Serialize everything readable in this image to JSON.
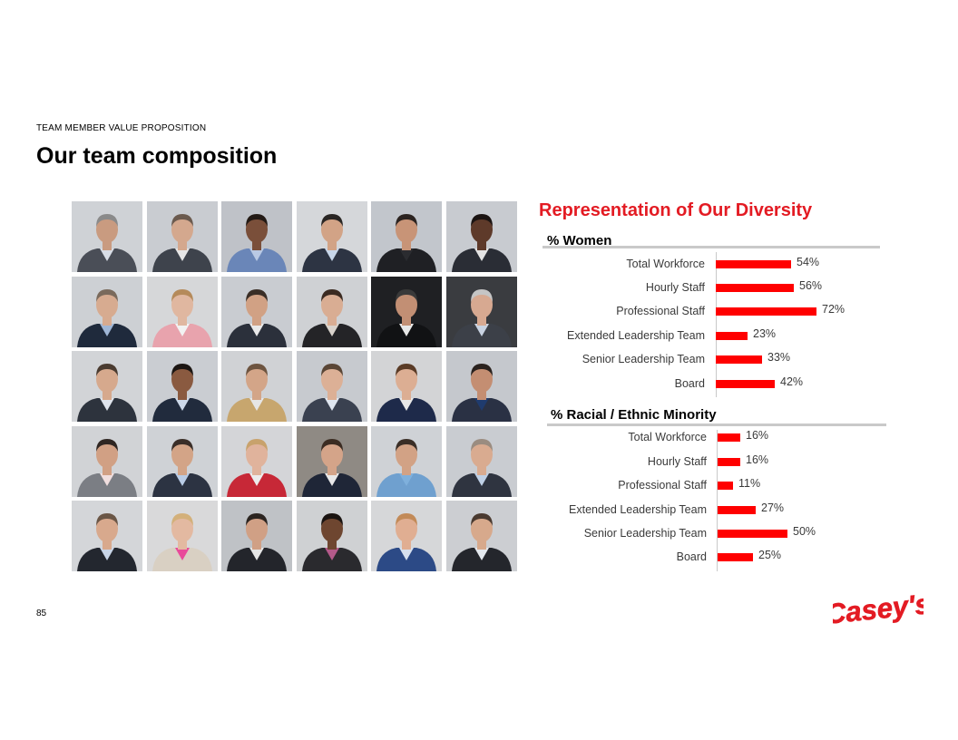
{
  "header": {
    "eyebrow": "TEAM MEMBER VALUE  PROPOSITION",
    "title": "Our team composition"
  },
  "footer": {
    "page_number": "85"
  },
  "logo": {
    "text": "Casey's",
    "color": "#e31b23"
  },
  "photos": [
    {
      "bg": "#cfd2d6",
      "skin": "#c99b80",
      "hair": "#8a8a8a",
      "suit": "#4a4e57",
      "shirt": "#d8dde6"
    },
    {
      "bg": "#c9ccd1",
      "skin": "#d4a88e",
      "hair": "#6b5a4e",
      "suit": "#3e434c",
      "shirt": "#e6e6e6"
    },
    {
      "bg": "#bfc2c8",
      "skin": "#7a4f3a",
      "hair": "#231a15",
      "suit": "#6a86b8",
      "shirt": "#b9c9e4"
    },
    {
      "bg": "#d5d7da",
      "skin": "#d2a386",
      "hair": "#2a2624",
      "suit": "#2d3443",
      "shirt": "#c7d6ea"
    },
    {
      "bg": "#c2c6cc",
      "skin": "#c89477",
      "hair": "#2b2320",
      "suit": "#1f2024",
      "shirt": "#2b2c30"
    },
    {
      "bg": "#c8cbd0",
      "skin": "#5e3a2a",
      "hair": "#1b1412",
      "suit": "#2a2d35",
      "shirt": "#e4e4e4"
    },
    {
      "bg": "#cdd0d4",
      "skin": "#d7ab90",
      "hair": "#7a6a5c",
      "suit": "#1f2a3c",
      "shirt": "#9fb6d6"
    },
    {
      "bg": "#d6d7d9",
      "skin": "#e0b7a0",
      "hair": "#b58a5a",
      "suit": "#e8a3ad",
      "shirt": "#f2f2f2"
    },
    {
      "bg": "#c9ccd1",
      "skin": "#d1a184",
      "hair": "#3a2e26",
      "suit": "#2b303b",
      "shirt": "#e9e9e9"
    },
    {
      "bg": "#cfd1d4",
      "skin": "#d9ad93",
      "hair": "#3b2a21",
      "suit": "#242427",
      "shirt": "#d9d3cc"
    },
    {
      "bg": "#1f2023",
      "skin": "#c28f74",
      "hair": "#3a3a3a",
      "suit": "#111214",
      "shirt": "#e8e8e8"
    },
    {
      "bg": "#3a3c40",
      "skin": "#d7a991",
      "hair": "#c5c5c5",
      "suit": "#3c4048",
      "shirt": "#c9d3e2"
    },
    {
      "bg": "#d2d4d7",
      "skin": "#d6a98d",
      "hair": "#4a3b30",
      "suit": "#2d333d",
      "shirt": "#dfe4ec"
    },
    {
      "bg": "#cacdd2",
      "skin": "#8a5a40",
      "hair": "#1c1613",
      "suit": "#212b3d",
      "shirt": "#cdd9ea"
    },
    {
      "bg": "#d0d2d5",
      "skin": "#d3a588",
      "hair": "#6d5440",
      "suit": "#c7a66e",
      "shirt": "#e6e6e6"
    },
    {
      "bg": "#c7cacf",
      "skin": "#dcb096",
      "hair": "#5a4636",
      "suit": "#3a4150",
      "shirt": "#dfe6f0"
    },
    {
      "bg": "#d3d4d6",
      "skin": "#dcae93",
      "hair": "#5a3b26",
      "suit": "#1e2a4a",
      "shirt": "#e8e8e8"
    },
    {
      "bg": "#c5c8cd",
      "skin": "#c48e72",
      "hair": "#2a221e",
      "suit": "#2a3144",
      "shirt": "#1f3b6e"
    },
    {
      "bg": "#d1d3d6",
      "skin": "#d1a084",
      "hair": "#2f2622",
      "suit": "#7b7e84",
      "shirt": "#f0dede"
    },
    {
      "bg": "#cfd2d6",
      "skin": "#d3a487",
      "hair": "#3a2e28",
      "suit": "#2c3342",
      "shirt": "#b9cce6"
    },
    {
      "bg": "#d4d5d8",
      "skin": "#e0b39c",
      "hair": "#c8a26c",
      "suit": "#c72837",
      "shirt": "#ececec"
    },
    {
      "bg": "#8f8a84",
      "skin": "#d4a489",
      "hair": "#3b2c22",
      "suit": "#1f2637",
      "shirt": "#e8e8e8"
    },
    {
      "bg": "#cfd2d6",
      "skin": "#d2a285",
      "hair": "#3a2e26",
      "suit": "#6fa0cf",
      "shirt": "#7fb0dc"
    },
    {
      "bg": "#c9ccd1",
      "skin": "#d9ab90",
      "hair": "#9a8c80",
      "suit": "#2f3440",
      "shirt": "#bfd0e6"
    },
    {
      "bg": "#d4d6d9",
      "skin": "#d8a98d",
      "hair": "#6a5646",
      "suit": "#23272f",
      "shirt": "#c9d6e8"
    },
    {
      "bg": "#d9d9da",
      "skin": "#e3b9a1",
      "hair": "#d3b07a",
      "suit": "#d9d0c3",
      "shirt": "#e94a9a"
    },
    {
      "bg": "#bfc2c6",
      "skin": "#d0a085",
      "hair": "#2b2420",
      "suit": "#23252b",
      "shirt": "#e6e6e6"
    },
    {
      "bg": "#cfd1d3",
      "skin": "#6e4630",
      "hair": "#1a1411",
      "suit": "#2a2a2e",
      "shirt": "#b45a8a"
    },
    {
      "bg": "#d6d7d9",
      "skin": "#e0ae92",
      "hair": "#c28a58",
      "suit": "#2c4a86",
      "shirt": "#d6e0ee"
    },
    {
      "bg": "#ccced2",
      "skin": "#d7a98c",
      "hair": "#4a3a30",
      "suit": "#24262c",
      "shirt": "#e4e8ee"
    }
  ],
  "chart_data": {
    "title": "Representation  of Our Diversity",
    "type": "bar",
    "orientation": "horizontal",
    "bar_color": "#ff0000",
    "categories": [
      "Total Workforce",
      "Hourly Staff",
      "Professional Staff",
      "Extended Leadership Team",
      "Senior Leadership Team",
      "Board"
    ],
    "xlim": [
      0,
      100
    ],
    "series": [
      {
        "name": "% Women",
        "values": [
          54,
          56,
          72,
          23,
          33,
          42
        ],
        "labels": [
          "54%",
          "56%",
          "72%",
          "23%",
          "33%",
          "42%"
        ]
      },
      {
        "name": "% Racial  / Ethnic  Minority",
        "values": [
          16,
          16,
          11,
          27,
          50,
          25
        ],
        "labels": [
          "16%",
          "16%",
          "11%",
          "27%",
          "50%",
          "25%"
        ]
      }
    ]
  }
}
